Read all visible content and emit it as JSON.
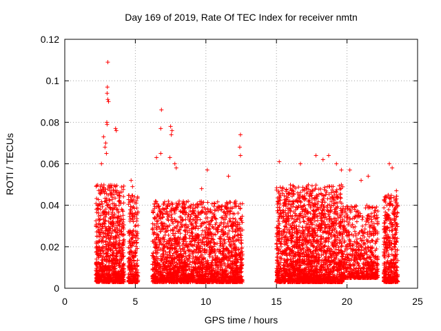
{
  "chart_data": {
    "type": "scatter",
    "title": "Day 169 of 2019, Rate Of TEC Index for receiver nmtn",
    "xlabel": "GPS time / hours",
    "ylabel": "ROTI / TECUs",
    "xlim": [
      0,
      25
    ],
    "ylim": [
      0,
      0.12
    ],
    "xticks": [
      "0",
      "5",
      "10",
      "15",
      "20",
      "25"
    ],
    "yticks": [
      "0",
      "0.02",
      "0.04",
      "0.06",
      "0.08",
      "0.1",
      "0.12"
    ],
    "grid": true,
    "marker": "+",
    "color": "#ff0000",
    "series": [
      {
        "clusters": [
          {
            "x_range": [
              2.2,
              4.2
            ],
            "y_min": 0.003,
            "y_max": 0.05,
            "n": 900
          },
          {
            "x_range": [
              4.5,
              5.2
            ],
            "y_min": 0.003,
            "y_max": 0.045,
            "n": 260
          },
          {
            "x_range": [
              6.2,
              12.6
            ],
            "y_min": 0.003,
            "y_max": 0.042,
            "n": 2200
          },
          {
            "x_range": [
              15.0,
              19.7
            ],
            "y_min": 0.003,
            "y_max": 0.05,
            "n": 2000
          },
          {
            "x_range": [
              19.7,
              22.2
            ],
            "y_min": 0.005,
            "y_max": 0.04,
            "n": 650
          },
          {
            "x_range": [
              22.6,
              23.6
            ],
            "y_min": 0.003,
            "y_max": 0.045,
            "n": 420
          }
        ],
        "peaks": [
          {
            "x": 3.05,
            "y": 0.109
          },
          {
            "x": 3.02,
            "y": 0.097
          },
          {
            "x": 3.0,
            "y": 0.094
          },
          {
            "x": 3.05,
            "y": 0.091
          },
          {
            "x": 3.1,
            "y": 0.09
          },
          {
            "x": 2.98,
            "y": 0.08
          },
          {
            "x": 3.0,
            "y": 0.079
          },
          {
            "x": 3.6,
            "y": 0.077
          },
          {
            "x": 3.65,
            "y": 0.076
          },
          {
            "x": 2.75,
            "y": 0.073
          },
          {
            "x": 2.9,
            "y": 0.07
          },
          {
            "x": 2.85,
            "y": 0.068
          },
          {
            "x": 2.95,
            "y": 0.065
          },
          {
            "x": 2.6,
            "y": 0.06
          },
          {
            "x": 6.85,
            "y": 0.086
          },
          {
            "x": 6.8,
            "y": 0.077
          },
          {
            "x": 7.5,
            "y": 0.078
          },
          {
            "x": 7.6,
            "y": 0.076
          },
          {
            "x": 7.55,
            "y": 0.074
          },
          {
            "x": 6.8,
            "y": 0.065
          },
          {
            "x": 6.5,
            "y": 0.063
          },
          {
            "x": 7.45,
            "y": 0.063
          },
          {
            "x": 7.9,
            "y": 0.058
          },
          {
            "x": 7.8,
            "y": 0.06
          },
          {
            "x": 12.45,
            "y": 0.074
          },
          {
            "x": 12.4,
            "y": 0.068
          },
          {
            "x": 12.45,
            "y": 0.064
          },
          {
            "x": 10.1,
            "y": 0.057
          },
          {
            "x": 15.2,
            "y": 0.061
          },
          {
            "x": 16.7,
            "y": 0.06
          },
          {
            "x": 17.8,
            "y": 0.064
          },
          {
            "x": 18.7,
            "y": 0.064
          },
          {
            "x": 18.3,
            "y": 0.062
          },
          {
            "x": 19.25,
            "y": 0.06
          },
          {
            "x": 19.6,
            "y": 0.057
          },
          {
            "x": 20.2,
            "y": 0.057
          },
          {
            "x": 23.0,
            "y": 0.06
          },
          {
            "x": 23.2,
            "y": 0.058
          },
          {
            "x": 21.5,
            "y": 0.054
          },
          {
            "x": 21.0,
            "y": 0.052
          },
          {
            "x": 23.5,
            "y": 0.047
          },
          {
            "x": 4.7,
            "y": 0.052
          },
          {
            "x": 4.8,
            "y": 0.049
          },
          {
            "x": 11.6,
            "y": 0.054
          },
          {
            "x": 9.7,
            "y": 0.048
          }
        ]
      }
    ]
  }
}
